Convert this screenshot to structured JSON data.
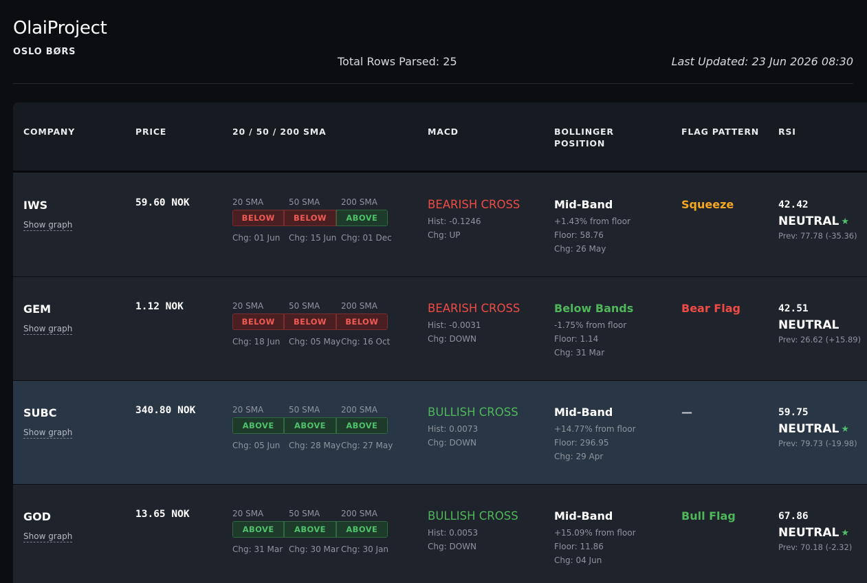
{
  "header": {
    "title": "OlaiProject",
    "exchange": "OSLO BØRS",
    "total_rows": "Total Rows Parsed: 25",
    "last_updated": "Last Updated: 23 Jun 2026 08:30"
  },
  "columns": [
    "COMPANY",
    "PRICE",
    "20 / 50 / 200 SMA",
    "MACD",
    "BOLLINGER POSITION",
    "FLAG PATTERN",
    "RSI"
  ],
  "colors": {
    "bearish": "#ef4b44",
    "bullish": "#4fb75a",
    "squeeze": "#f5a623",
    "neutral_text": "#ffffff",
    "star": "#4fc16a"
  },
  "sma_labels": [
    "20 SMA",
    "50 SMA",
    "200 SMA"
  ],
  "show_graph_label": "Show graph",
  "rows": [
    {
      "ticker": "IWS",
      "price": "59.60 NOK",
      "sma": [
        {
          "status": "BELOW",
          "chg": "Chg: 01 Jun"
        },
        {
          "status": "BELOW",
          "chg": "Chg: 15 Jun"
        },
        {
          "status": "ABOVE",
          "chg": "Chg: 01 Dec"
        }
      ],
      "macd": {
        "signal": "BEARISH CROSS",
        "hist": "Hist: -0.1246",
        "chg": "Chg: UP",
        "color": "#ef4b44"
      },
      "bollinger": {
        "position": "Mid-Band",
        "pct": "+1.43% from floor",
        "floor": "Floor: 58.76",
        "chg": "Chg: 26 May",
        "color": "#ffffff"
      },
      "flag": {
        "text": "Squeeze",
        "color": "#f5a623"
      },
      "rsi": {
        "value": "42.42",
        "status": "NEUTRAL",
        "star": "★",
        "prev": "Prev: 77.78 (-35.36)"
      },
      "highlight": false
    },
    {
      "ticker": "GEM",
      "price": "1.12 NOK",
      "sma": [
        {
          "status": "BELOW",
          "chg": "Chg: 18 Jun"
        },
        {
          "status": "BELOW",
          "chg": "Chg: 05 May"
        },
        {
          "status": "BELOW",
          "chg": "Chg: 16 Oct"
        }
      ],
      "macd": {
        "signal": "BEARISH CROSS",
        "hist": "Hist: -0.0031",
        "chg": "Chg: DOWN",
        "color": "#ef4b44"
      },
      "bollinger": {
        "position": "Below Bands",
        "pct": "-1.75% from floor",
        "floor": "Floor: 1.14",
        "chg": "Chg: 31 Mar",
        "color": "#4fb75a"
      },
      "flag": {
        "text": "Bear Flag",
        "color": "#ef4b44"
      },
      "rsi": {
        "value": "42.51",
        "status": "NEUTRAL",
        "star": "",
        "prev": "Prev: 26.62 (+15.89)"
      },
      "highlight": false
    },
    {
      "ticker": "SUBC",
      "price": "340.80 NOK",
      "sma": [
        {
          "status": "ABOVE",
          "chg": "Chg: 05 Jun"
        },
        {
          "status": "ABOVE",
          "chg": "Chg: 28 May"
        },
        {
          "status": "ABOVE",
          "chg": "Chg: 27 May"
        }
      ],
      "macd": {
        "signal": "BULLISH CROSS",
        "hist": "Hist: 0.0073",
        "chg": "Chg: DOWN",
        "color": "#4fb75a"
      },
      "bollinger": {
        "position": "Mid-Band",
        "pct": "+14.77% from floor",
        "floor": "Floor: 296.95",
        "chg": "Chg: 29 Apr",
        "color": "#ffffff"
      },
      "flag": {
        "text": "—",
        "color": "#c8ccd2"
      },
      "rsi": {
        "value": "59.75",
        "status": "NEUTRAL",
        "star": "★",
        "prev": "Prev: 79.73 (-19.98)"
      },
      "highlight": true
    },
    {
      "ticker": "GOD",
      "price": "13.65 NOK",
      "sma": [
        {
          "status": "ABOVE",
          "chg": "Chg: 31 Mar"
        },
        {
          "status": "ABOVE",
          "chg": "Chg: 30 Mar"
        },
        {
          "status": "ABOVE",
          "chg": "Chg: 30 Jan"
        }
      ],
      "macd": {
        "signal": "BULLISH CROSS",
        "hist": "Hist: 0.0053",
        "chg": "Chg: DOWN",
        "color": "#4fb75a"
      },
      "bollinger": {
        "position": "Mid-Band",
        "pct": "+15.09% from floor",
        "floor": "Floor: 11.86",
        "chg": "Chg: 04 Jun",
        "color": "#ffffff"
      },
      "flag": {
        "text": "Bull Flag",
        "color": "#4fb75a"
      },
      "rsi": {
        "value": "67.86",
        "status": "NEUTRAL",
        "star": "★",
        "prev": "Prev: 70.18 (-2.32)"
      },
      "highlight": false
    }
  ]
}
